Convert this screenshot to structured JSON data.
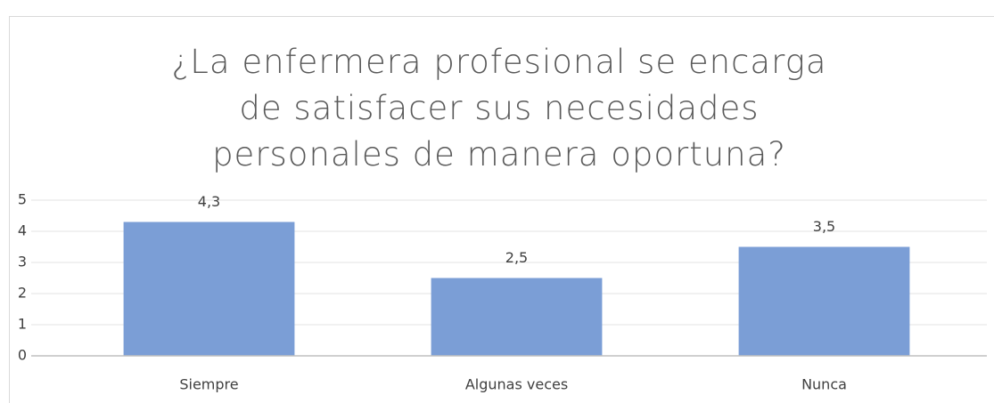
{
  "chart_data": {
    "type": "bar",
    "title": "¿La enfermera profesional se encarga de satisfacer sus necesidades personales de manera oportuna?",
    "categories": [
      "Siempre",
      "Algunas veces",
      "Nunca"
    ],
    "values": [
      4.3,
      2.5,
      3.5
    ],
    "value_labels": [
      "4,3",
      "2,5",
      "3,5"
    ],
    "color": "#7b9ed6",
    "ylim": [
      0,
      5
    ],
    "yticks": [
      0,
      1,
      2,
      3,
      4,
      5
    ],
    "grid": true
  }
}
